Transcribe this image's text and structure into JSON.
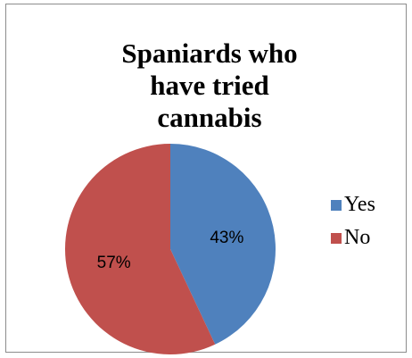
{
  "chart_data": {
    "type": "pie",
    "title": "Spaniards who have tried cannabis",
    "categories": [
      "Yes",
      "No"
    ],
    "values": [
      43,
      57
    ],
    "data_labels": [
      "43%",
      "57%"
    ],
    "colors": [
      "#4f81bd",
      "#c0504d"
    ],
    "legend_placement": "right"
  }
}
